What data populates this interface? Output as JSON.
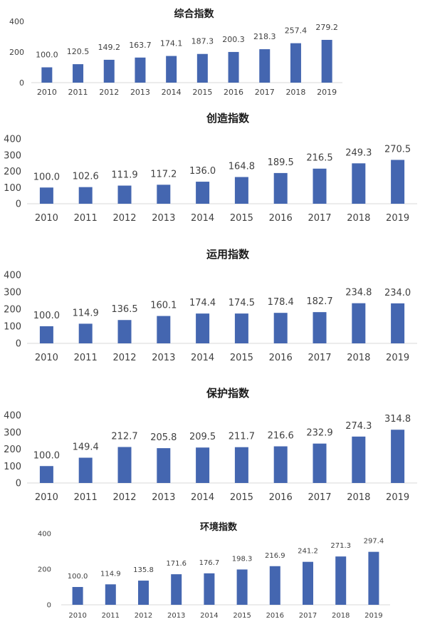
{
  "chart_data": [
    {
      "type": "bar",
      "title": "综合指数",
      "categories": [
        "2010",
        "2011",
        "2012",
        "2013",
        "2014",
        "2015",
        "2016",
        "2017",
        "2018",
        "2019"
      ],
      "values": [
        100.0,
        120.5,
        149.2,
        163.7,
        174.1,
        187.3,
        200.3,
        218.3,
        257.4,
        279.2
      ],
      "value_labels": [
        "100.0",
        "120.5",
        "149.2",
        "163.7",
        "174.1",
        "187.3",
        "200.3",
        "218.3",
        "257.4",
        "279.2"
      ],
      "yticks": [
        "0",
        "200",
        "400"
      ],
      "ylim": [
        0,
        400
      ],
      "bar_color": "#4466b0"
    },
    {
      "type": "bar",
      "title": "创造指数",
      "categories": [
        "2010",
        "2011",
        "2012",
        "2013",
        "2014",
        "2015",
        "2016",
        "2017",
        "2018",
        "2019"
      ],
      "values": [
        100.0,
        102.6,
        111.9,
        117.2,
        136.0,
        164.8,
        189.5,
        216.5,
        249.3,
        270.5
      ],
      "value_labels": [
        "100.0",
        "102.6",
        "111.9",
        "117.2",
        "136.0",
        "164.8",
        "189.5",
        "216.5",
        "249.3",
        "270.5"
      ],
      "yticks": [
        "0",
        "100",
        "200",
        "300",
        "400"
      ],
      "ylim": [
        0,
        400
      ],
      "bar_color": "#4466b0"
    },
    {
      "type": "bar",
      "title": "运用指数",
      "categories": [
        "2010",
        "2011",
        "2012",
        "2013",
        "2014",
        "2015",
        "2016",
        "2017",
        "2018",
        "2019"
      ],
      "values": [
        100.0,
        114.9,
        136.5,
        160.1,
        174.4,
        174.5,
        178.4,
        182.7,
        234.8,
        234.0
      ],
      "value_labels": [
        "100.0",
        "114.9",
        "136.5",
        "160.1",
        "174.4",
        "174.5",
        "178.4",
        "182.7",
        "234.8",
        "234.0"
      ],
      "yticks": [
        "0",
        "100",
        "200",
        "300",
        "400"
      ],
      "ylim": [
        0,
        400
      ],
      "bar_color": "#4466b0"
    },
    {
      "type": "bar",
      "title": "保护指数",
      "categories": [
        "2010",
        "2011",
        "2012",
        "2013",
        "2014",
        "2015",
        "2016",
        "2017",
        "2018",
        "2019"
      ],
      "values": [
        100.0,
        149.4,
        212.7,
        205.8,
        209.5,
        211.7,
        216.6,
        232.9,
        274.3,
        314.8
      ],
      "value_labels": [
        "100.0",
        "149.4",
        "212.7",
        "205.8",
        "209.5",
        "211.7",
        "216.6",
        "232.9",
        "274.3",
        "314.8"
      ],
      "yticks": [
        "0",
        "100",
        "200",
        "300",
        "400"
      ],
      "ylim": [
        0,
        400
      ],
      "bar_color": "#4466b0"
    },
    {
      "type": "bar",
      "title": "环境指数",
      "categories": [
        "2010",
        "2011",
        "2012",
        "2013",
        "2014",
        "2015",
        "2016",
        "2017",
        "2018",
        "2019"
      ],
      "values": [
        100.0,
        114.9,
        135.8,
        171.6,
        176.7,
        198.3,
        216.9,
        241.2,
        271.3,
        297.4
      ],
      "value_labels": [
        "100.0",
        "114.9",
        "135.8",
        "171.6",
        "176.7",
        "198.3",
        "216.9",
        "241.2",
        "271.3",
        "297.4"
      ],
      "yticks": [
        "0",
        "200",
        "400"
      ],
      "ylim": [
        0,
        400
      ],
      "bar_color": "#4466b0"
    }
  ]
}
